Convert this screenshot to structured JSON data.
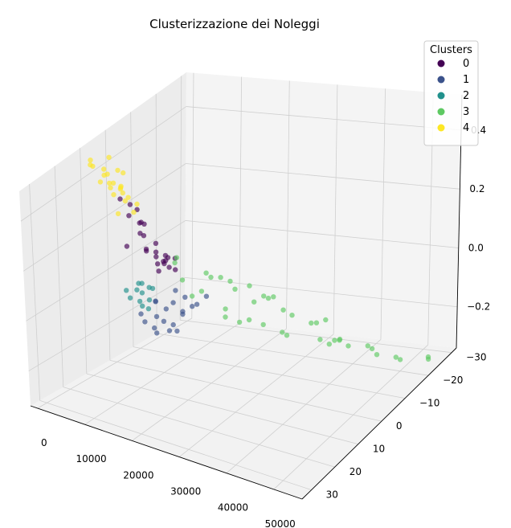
{
  "chart_data": {
    "type": "scatter",
    "projection": "3d",
    "title": "Clusterizzazione dei Noleggi",
    "xlabel": "",
    "ylabel": "",
    "zlabel": "",
    "grid": true,
    "legend": {
      "title": "Clusters",
      "placement": "top-right"
    },
    "x_axis": {
      "ticks": [
        "0",
        "10000",
        "20000",
        "30000",
        "40000",
        "50000"
      ],
      "range": [
        -1500,
        56000
      ]
    },
    "y_axis": {
      "ticks": [
        "30",
        "20",
        "10",
        "0",
        "−10",
        "−20",
        "−30"
      ],
      "range": [
        -32,
        34
      ]
    },
    "z_axis": {
      "ticks": [
        "0.4",
        "0.2",
        "0.0",
        "−0.2"
      ],
      "range": [
        -0.34,
        0.52
      ]
    },
    "series": [
      {
        "name": "0",
        "color": "#440154",
        "points": [
          [
            2000,
            -2,
            0.2
          ],
          [
            3000,
            -5,
            0.16
          ],
          [
            2500,
            0,
            0.1
          ],
          [
            4000,
            -4,
            0.12
          ],
          [
            3500,
            -6,
            0.05
          ],
          [
            5000,
            -3,
            0.08
          ],
          [
            4500,
            -8,
            0.02
          ],
          [
            2800,
            -1,
            0.25
          ],
          [
            3200,
            -3,
            0.22
          ],
          [
            6000,
            -5,
            0.06
          ],
          [
            5500,
            -9,
            0.0
          ],
          [
            7000,
            -7,
            0.02
          ],
          [
            3800,
            -10,
            -0.02
          ],
          [
            4200,
            -2,
            0.18
          ],
          [
            1800,
            1,
            0.28
          ],
          [
            6500,
            -4,
            0.1
          ],
          [
            8000,
            -6,
            0.04
          ],
          [
            5200,
            -12,
            -0.04
          ],
          [
            2600,
            -7,
            0.14
          ],
          [
            4800,
            -1,
            0.15
          ],
          [
            9000,
            -3,
            0.07
          ],
          [
            7500,
            -10,
            -0.03
          ],
          [
            3000,
            -12,
            -0.06
          ],
          [
            6200,
            -8,
            0.0
          ],
          [
            10000,
            -5,
            0.05
          ]
        ]
      },
      {
        "name": "1",
        "color": "#3b528b",
        "points": [
          [
            1000,
            -10,
            -0.24
          ],
          [
            2000,
            -12,
            -0.27
          ],
          [
            1500,
            -14,
            -0.3
          ],
          [
            3000,
            -11,
            -0.22
          ],
          [
            2500,
            -15,
            -0.26
          ],
          [
            4000,
            -13,
            -0.2
          ],
          [
            3500,
            -17,
            -0.28
          ],
          [
            5000,
            -14,
            -0.18
          ],
          [
            1200,
            -8,
            -0.2
          ],
          [
            6000,
            -16,
            -0.22
          ],
          [
            4500,
            -19,
            -0.25
          ],
          [
            2200,
            -18,
            -0.31
          ],
          [
            7000,
            -15,
            -0.16
          ],
          [
            3800,
            -9,
            -0.15
          ],
          [
            8000,
            -18,
            -0.2
          ],
          [
            5500,
            -21,
            -0.23
          ],
          [
            1800,
            -13,
            -0.18
          ],
          [
            6500,
            -12,
            -0.12
          ],
          [
            9000,
            -20,
            -0.18
          ],
          [
            2800,
            -20,
            -0.32
          ]
        ]
      },
      {
        "name": "2",
        "color": "#21918c",
        "points": [
          [
            1000,
            -4,
            -0.12
          ],
          [
            2000,
            -6,
            -0.14
          ],
          [
            1500,
            -8,
            -0.17
          ],
          [
            3000,
            -5,
            -0.1
          ],
          [
            2500,
            -9,
            -0.15
          ],
          [
            1200,
            -2,
            -0.08
          ],
          [
            3500,
            -7,
            -0.09
          ],
          [
            1800,
            -10,
            -0.19
          ],
          [
            4000,
            -3,
            -0.05
          ],
          [
            2200,
            -11,
            -0.12
          ],
          [
            2800,
            -4,
            -0.06
          ],
          [
            1400,
            -6,
            -0.1
          ]
        ]
      },
      {
        "name": "3",
        "color": "#5ec962",
        "points": [
          [
            12000,
            -8,
            -0.1
          ],
          [
            15000,
            -6,
            -0.06
          ],
          [
            18000,
            -10,
            -0.14
          ],
          [
            20000,
            -4,
            0.02
          ],
          [
            22000,
            -12,
            -0.18
          ],
          [
            14000,
            3,
            0.1
          ],
          [
            25000,
            -8,
            -0.08
          ],
          [
            28000,
            -14,
            -0.22
          ],
          [
            30000,
            -2,
            0.0
          ],
          [
            32000,
            -10,
            -0.12
          ],
          [
            35000,
            -16,
            -0.24
          ],
          [
            26000,
            2,
            0.04
          ],
          [
            38000,
            -6,
            -0.1
          ],
          [
            40000,
            -12,
            -0.2
          ],
          [
            42000,
            -4,
            -0.06
          ],
          [
            45000,
            -18,
            -0.26
          ],
          [
            36000,
            6,
            0.08
          ],
          [
            48000,
            -10,
            -0.18
          ],
          [
            50000,
            -20,
            -0.3
          ],
          [
            52000,
            -14,
            -0.24
          ],
          [
            54000,
            -24,
            -0.32
          ],
          [
            33000,
            10,
            0.14
          ],
          [
            44000,
            4,
            0.0
          ],
          [
            24000,
            8,
            0.12
          ],
          [
            16000,
            -14,
            -0.2
          ],
          [
            19000,
            0,
            0.06
          ],
          [
            27000,
            -18,
            -0.26
          ],
          [
            31000,
            14,
            0.18
          ],
          [
            46000,
            -2,
            -0.1
          ],
          [
            21000,
            16,
            0.24
          ],
          [
            29000,
            -6,
            -0.04
          ],
          [
            39000,
            -20,
            -0.28
          ],
          [
            23000,
            -16,
            -0.22
          ],
          [
            34000,
            -22,
            -0.3
          ],
          [
            41000,
            12,
            0.1
          ],
          [
            47000,
            -16,
            -0.26
          ],
          [
            53000,
            -26,
            -0.33
          ],
          [
            13000,
            -2,
            0.0
          ],
          [
            17000,
            -18,
            -0.24
          ],
          [
            43000,
            -8,
            -0.16
          ]
        ]
      },
      {
        "name": "4",
        "color": "#fde725",
        "points": [
          [
            1000,
            2,
            0.3
          ],
          [
            1500,
            0,
            0.32
          ],
          [
            2000,
            4,
            0.36
          ],
          [
            800,
            -2,
            0.28
          ],
          [
            2500,
            1,
            0.38
          ],
          [
            1200,
            6,
            0.4
          ],
          [
            3000,
            3,
            0.34
          ],
          [
            1800,
            -1,
            0.26
          ],
          [
            3500,
            5,
            0.42
          ],
          [
            2200,
            8,
            0.44
          ],
          [
            1000,
            10,
            0.46
          ],
          [
            4000,
            2,
            0.3
          ],
          [
            2800,
            7,
            0.48
          ],
          [
            1600,
            12,
            0.5
          ],
          [
            3200,
            -3,
            0.24
          ],
          [
            1400,
            4,
            0.34
          ],
          [
            4500,
            6,
            0.36
          ],
          [
            2000,
            -4,
            0.2
          ],
          [
            3800,
            9,
            0.4
          ],
          [
            900,
            7,
            0.38
          ],
          [
            5000,
            12,
            0.46
          ],
          [
            2600,
            14,
            0.5
          ],
          [
            6000,
            10,
            0.3
          ]
        ]
      }
    ]
  }
}
